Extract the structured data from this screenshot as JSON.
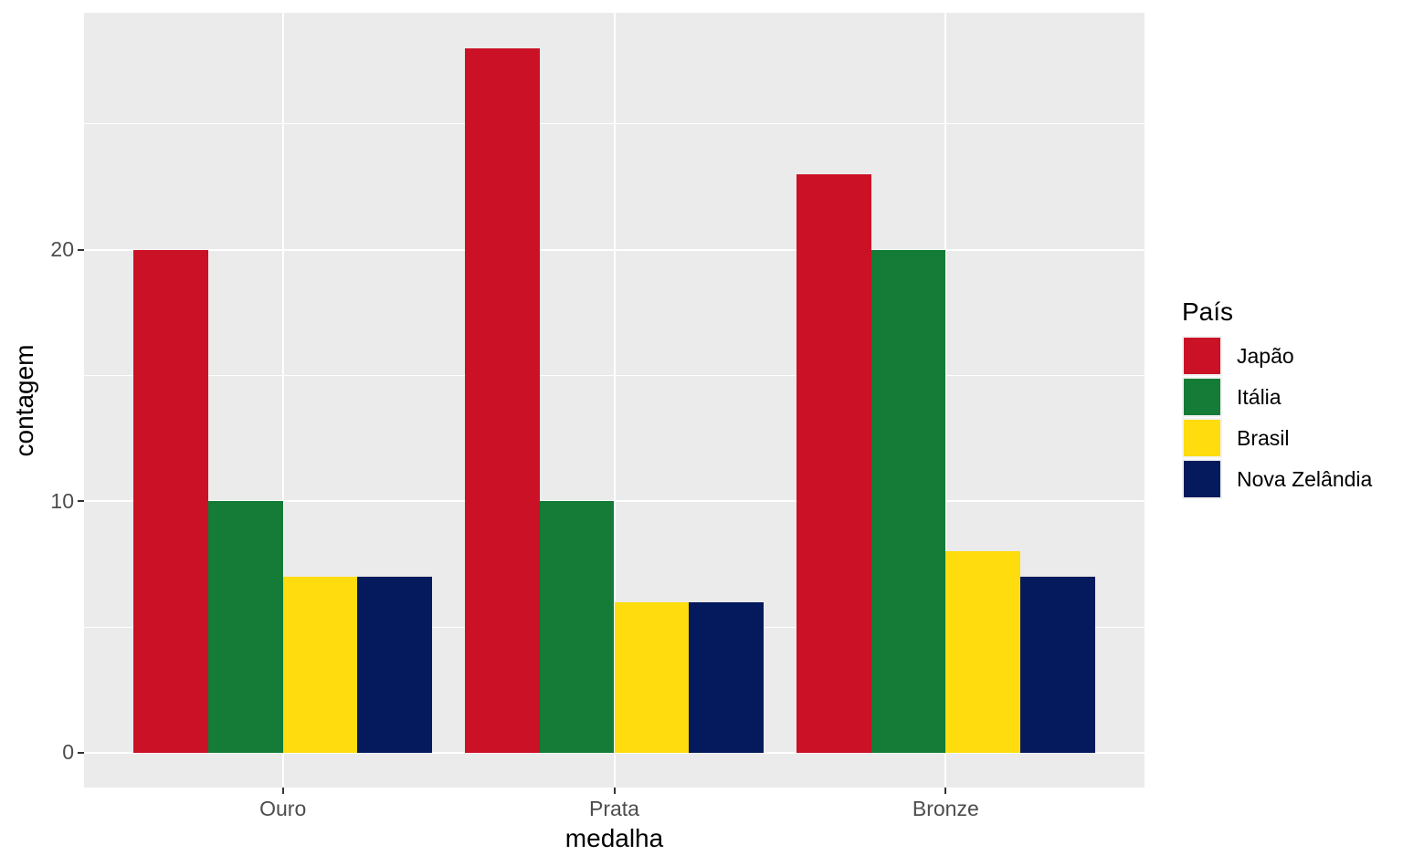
{
  "figure": {
    "background": "#FFFFFF",
    "panel_bg": "#EBEBEB",
    "grid_color": "#FFFFFF",
    "tick_mark_color": "#333333",
    "tick_label_color": "#4D4D4D",
    "text_color": "#000000"
  },
  "chart_data": {
    "type": "bar",
    "title": "",
    "xlabel": "medalha",
    "ylabel": "contagem",
    "categories": [
      "Ouro",
      "Prata",
      "Bronze"
    ],
    "series": [
      {
        "name": "Japão",
        "color": "#CB1126",
        "values": [
          20,
          28,
          23
        ]
      },
      {
        "name": "Itália",
        "color": "#147C36",
        "values": [
          10,
          10,
          20
        ]
      },
      {
        "name": "Brasil",
        "color": "#FFDC0D",
        "values": [
          7,
          6,
          8
        ]
      },
      {
        "name": "Nova Zelândia",
        "color": "#041A5C",
        "values": [
          7,
          6,
          7
        ]
      }
    ],
    "y_ticks": [
      0,
      10,
      20
    ],
    "y_tick_labels": [
      "0",
      "10",
      "20"
    ],
    "y_minor_ticks": [
      5,
      15,
      25
    ],
    "ylim": [
      -1.38,
      29.42
    ],
    "x_padding_units": 0.6,
    "group_width_fraction": 0.9,
    "grid": true,
    "legend": {
      "title": "País",
      "position": "right",
      "entries": [
        "Japão",
        "Itália",
        "Brasil",
        "Nova Zelândia"
      ]
    }
  }
}
